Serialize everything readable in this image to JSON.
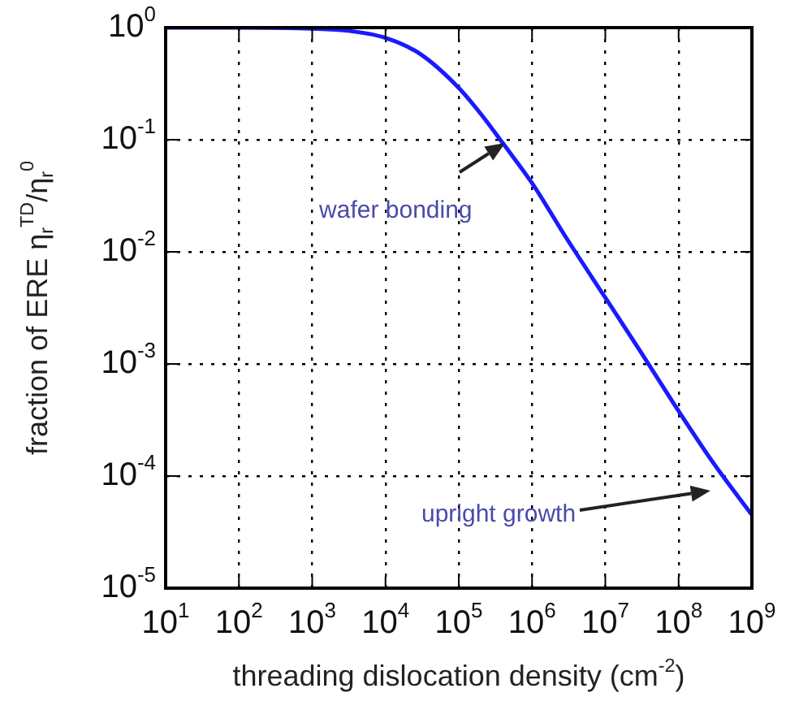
{
  "chart_data": {
    "type": "line",
    "xlabel": "threading dislocation density (cm$^{-2}$)",
    "ylabel": "fraction of ERE η$_{r}$$^{TD}$/η$_{r}$$^{0}$",
    "log": "xy",
    "grid": true,
    "legend": false,
    "marker": "none",
    "line_style": "solid",
    "xlim": [
      10,
      1000000000
    ],
    "ylim": [
      1e-05,
      1
    ],
    "xticks": [
      {
        "value": 10,
        "label": "10$^{1}$"
      },
      {
        "value": 100,
        "label": "10$^{2}$"
      },
      {
        "value": 1000,
        "label": "10$^{3}$"
      },
      {
        "value": 10000,
        "label": "10$^{4}$"
      },
      {
        "value": 100000,
        "label": "10$^{5}$"
      },
      {
        "value": 1000000,
        "label": "10$^{6}$"
      },
      {
        "value": 10000000,
        "label": "10$^{7}$"
      },
      {
        "value": 100000000,
        "label": "10$^{8}$"
      },
      {
        "value": 1000000000,
        "label": "10$^{9}$"
      }
    ],
    "yticks": [
      {
        "value": 1,
        "label": "10$^{0}$"
      },
      {
        "value": 0.1,
        "label": "10$^{-1}$"
      },
      {
        "value": 0.01,
        "label": "10$^{-2}$"
      },
      {
        "value": 0.001,
        "label": "10$^{-3}$"
      },
      {
        "value": 0.0001,
        "label": "10$^{-4}$"
      },
      {
        "value": 1e-05,
        "label": "10$^{-5}$"
      }
    ],
    "x": [
      10,
      100,
      1000,
      3000,
      10000,
      30000,
      100000,
      200000,
      400000,
      1000000,
      3000000,
      10000000,
      30000000,
      100000000,
      300000000,
      1000000000
    ],
    "series": [
      {
        "color": "#1a1aff",
        "values": [
          1,
          1,
          0.98,
          0.94,
          0.81,
          0.58,
          0.29,
          0.17,
          0.093,
          0.041,
          0.013,
          0.0039,
          0.0013,
          0.00038,
          0.00013,
          4.5e-05
        ]
      }
    ],
    "annotations": [
      "wafer bonding",
      "upright growth"
    ]
  }
}
